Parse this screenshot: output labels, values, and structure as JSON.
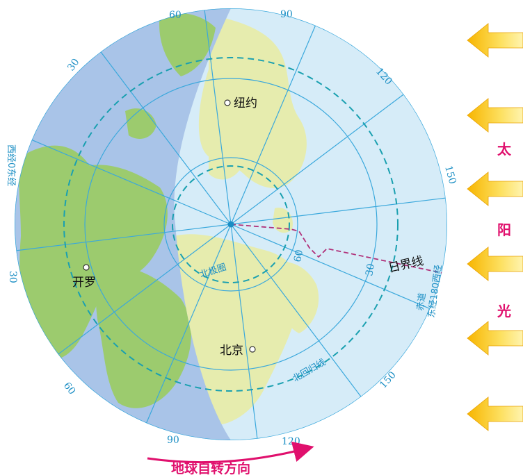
{
  "map": {
    "colors": {
      "ocean_day": "#d6ecf8",
      "ocean_night": "#a9c4e8",
      "land_day": "#e6ecae",
      "land_night": "#9ccb6e",
      "grid": "#3aa8dc",
      "circle_dashed": "#1aa0b0",
      "dateline": "#b0317a",
      "pink": "#e0106d"
    },
    "longitude_labels": {
      "l60_top": "60",
      "l90_top": "90",
      "l120_top": "120",
      "l30_top": "30",
      "l150_right": "150",
      "l30_left": "30",
      "l60_bottom": "60",
      "l90_bottom": "90",
      "l120_bottom": "120",
      "l150_bottom": "150"
    },
    "latitude_labels": {
      "lat60": "60",
      "lat30": "30"
    },
    "meridian_labels": {
      "prime": "西经0东经",
      "antimeridian": "东经180西经",
      "equator": "赤道"
    },
    "cities": {
      "new_york": "纽约",
      "cairo": "开罗",
      "beijing": "北京"
    },
    "circles": {
      "arctic": "北极圈",
      "tropic": "北回归线"
    },
    "dateline_label": "日界线",
    "sunlight_label": [
      "太",
      "阳",
      "光"
    ],
    "rotation_label": "地球自转方向"
  }
}
